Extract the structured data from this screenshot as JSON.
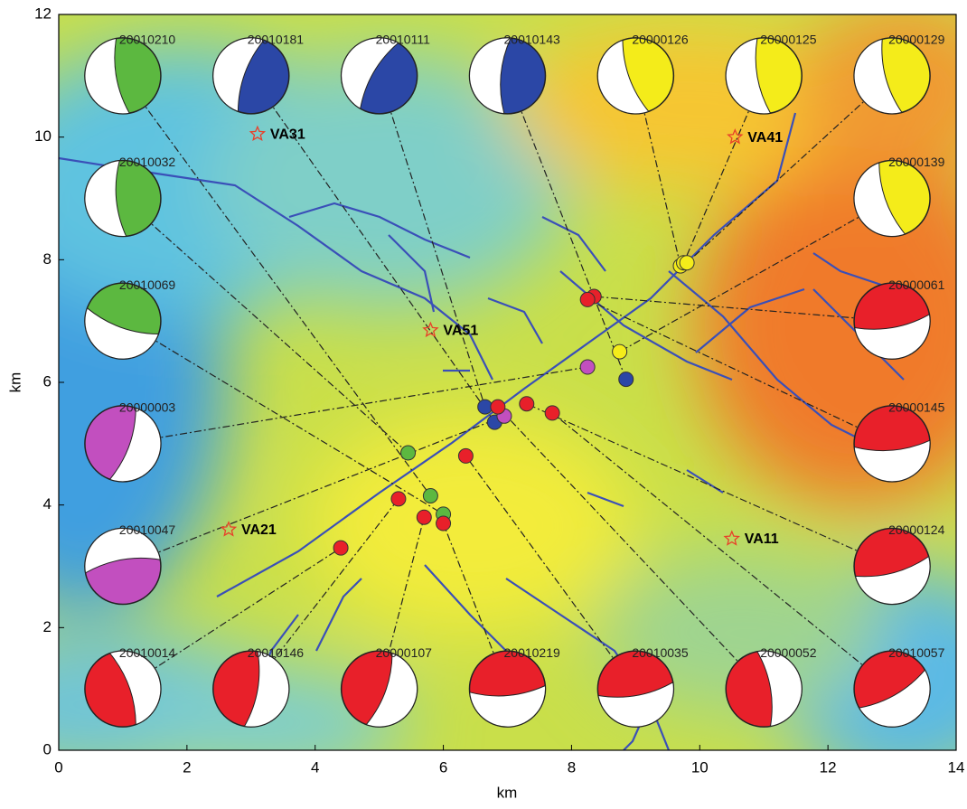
{
  "chart_data": {
    "type": "scatter",
    "x_label": "km",
    "y_label": "km",
    "xlim": [
      0,
      14
    ],
    "ylim": [
      0,
      12
    ],
    "xticks": [
      0,
      2,
      4,
      6,
      8,
      10,
      12,
      14
    ],
    "yticks": [
      0,
      2,
      4,
      6,
      8,
      10,
      12
    ],
    "stations": [
      {
        "name": "VA31",
        "x": 3.1,
        "y": 10.05
      },
      {
        "name": "VA41",
        "x": 10.55,
        "y": 10.0
      },
      {
        "name": "VA51",
        "x": 5.8,
        "y": 6.85
      },
      {
        "name": "VA21",
        "x": 2.65,
        "y": 3.6
      },
      {
        "name": "VA11",
        "x": 10.5,
        "y": 3.45
      }
    ],
    "mechanisms": [
      {
        "label": "20010210",
        "x": 1,
        "y": 11,
        "color": "#5cb840",
        "strike": 170,
        "event_x": 5.8,
        "event_y": 4.15
      },
      {
        "label": "20010181",
        "x": 3,
        "y": 11,
        "color": "#2b47a6",
        "strike": 200,
        "event_x": 6.8,
        "event_y": 5.35
      },
      {
        "label": "20010111",
        "x": 5,
        "y": 11,
        "color": "#2b47a6",
        "strike": 210,
        "event_x": 6.65,
        "event_y": 5.6
      },
      {
        "label": "20010143",
        "x": 7,
        "y": 11,
        "color": "#2b47a6",
        "strike": 185,
        "event_x": 8.85,
        "event_y": 6.05
      },
      {
        "label": "20000126",
        "x": 9,
        "y": 11,
        "color": "#f4ec1a",
        "strike": 160,
        "event_x": 9.7,
        "event_y": 7.9
      },
      {
        "label": "20000125",
        "x": 11,
        "y": 11,
        "color": "#f4ec1a",
        "strike": 170,
        "event_x": 9.75,
        "event_y": 7.95
      },
      {
        "label": "20000129",
        "x": 13,
        "y": 11,
        "color": "#f4ec1a",
        "strike": 165,
        "event_x": 9.8,
        "event_y": 7.95
      },
      {
        "label": "20010032",
        "x": 1,
        "y": 9,
        "color": "#5cb840",
        "strike": 175,
        "event_x": 5.45,
        "event_y": 4.85
      },
      {
        "label": "20010069",
        "x": 1,
        "y": 7,
        "color": "#5cb840",
        "strike": 110,
        "event_x": 6.0,
        "event_y": 3.85
      },
      {
        "label": "20000003",
        "x": 1,
        "y": 5,
        "color": "#c24fbf",
        "strike": 20,
        "event_x": 8.25,
        "event_y": 6.25
      },
      {
        "label": "20010047",
        "x": 1,
        "y": 3,
        "color": "#c24fbf",
        "strike": 260,
        "event_x": 6.95,
        "event_y": 5.45
      },
      {
        "label": "20000139",
        "x": 13,
        "y": 9,
        "color": "#f4ec1a",
        "strike": 160,
        "event_x": 8.75,
        "event_y": 6.5
      },
      {
        "label": "20000061",
        "x": 13,
        "y": 7,
        "color": "#e8202a",
        "strike": 80,
        "event_x": 8.35,
        "event_y": 7.4
      },
      {
        "label": "20000145",
        "x": 13,
        "y": 5,
        "color": "#e8202a",
        "strike": 85,
        "event_x": 8.25,
        "event_y": 7.35
      },
      {
        "label": "20000124",
        "x": 13,
        "y": 3,
        "color": "#e8202a",
        "strike": 75,
        "event_x": 7.3,
        "event_y": 5.65
      },
      {
        "label": "20010014",
        "x": 1,
        "y": 1,
        "color": "#e8202a",
        "strike": 340,
        "event_x": 4.4,
        "event_y": 3.3
      },
      {
        "label": "20010146",
        "x": 3,
        "y": 1,
        "color": "#e8202a",
        "strike": 10,
        "event_x": 5.3,
        "event_y": 4.1
      },
      {
        "label": "20000107",
        "x": 5,
        "y": 1,
        "color": "#e8202a",
        "strike": 20,
        "event_x": 5.7,
        "event_y": 3.8
      },
      {
        "label": "20010219",
        "x": 7,
        "y": 1,
        "color": "#e8202a",
        "strike": 85,
        "event_x": 6.0,
        "event_y": 3.7
      },
      {
        "label": "20010035",
        "x": 9,
        "y": 1,
        "color": "#e8202a",
        "strike": 80,
        "event_x": 6.35,
        "event_y": 4.8
      },
      {
        "label": "20000052",
        "x": 11,
        "y": 1,
        "color": "#e8202a",
        "strike": 350,
        "event_x": 6.85,
        "event_y": 5.6
      },
      {
        "label": "20010057",
        "x": 13,
        "y": 1,
        "color": "#e8202a",
        "strike": 60,
        "event_x": 7.7,
        "event_y": 5.5
      }
    ]
  }
}
